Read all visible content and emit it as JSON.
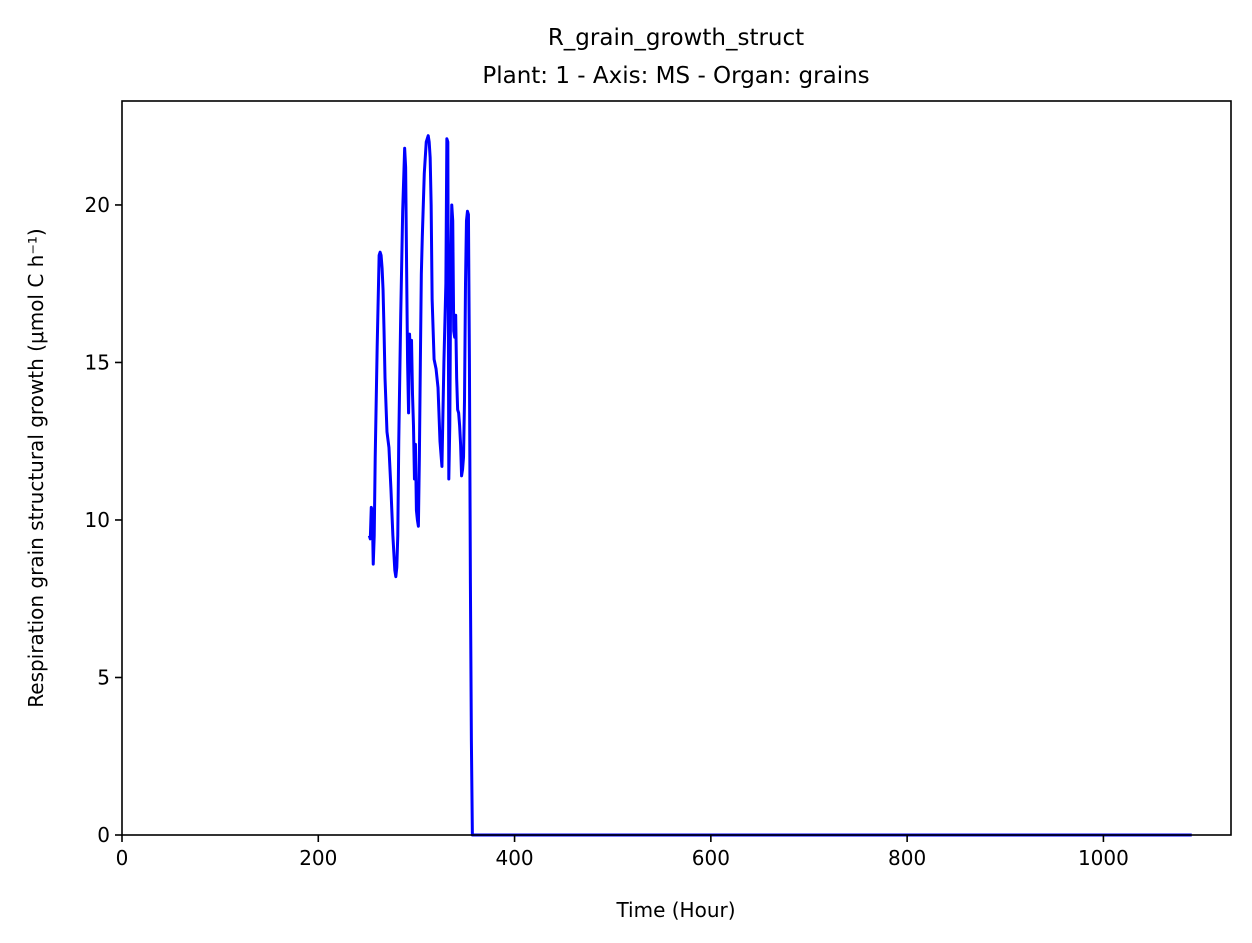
{
  "chart_data": {
    "type": "line",
    "title": "R_grain_growth_struct",
    "subtitle": "Plant: 1 - Axis: MS - Organ: grains",
    "xlabel": "Time (Hour)",
    "ylabel": "Respiration grain structural growth (μmol C h⁻¹)",
    "xlim": [
      0,
      1130
    ],
    "ylim": [
      0,
      23.3
    ],
    "xticks": [
      0,
      200,
      400,
      600,
      800,
      1000
    ],
    "yticks": [
      0,
      5,
      10,
      15,
      20
    ],
    "grid": false,
    "line_color": "#0000ff",
    "series": [
      {
        "x": [
          252,
          253,
          254,
          255,
          256,
          257,
          258,
          260,
          262,
          263,
          264,
          265,
          266,
          267,
          268,
          270,
          272,
          274,
          276,
          278,
          279,
          280,
          281,
          282,
          284,
          286,
          288,
          289,
          290,
          291,
          292,
          293,
          294,
          295,
          296,
          297,
          298,
          299,
          300,
          301,
          302,
          303,
          304,
          305,
          306,
          308,
          310,
          312,
          313,
          314,
          315,
          316,
          318,
          320,
          322,
          324,
          326,
          328,
          330,
          331,
          332,
          333,
          334,
          335,
          336,
          337,
          338,
          339,
          340,
          341,
          342,
          343,
          344,
          345,
          346,
          347,
          348,
          349,
          350,
          351,
          352,
          353,
          354,
          355,
          356,
          357,
          358,
          359,
          359.5,
          360,
          380,
          500,
          700,
          900,
          1090
        ],
        "y": [
          9.5,
          9.4,
          10.4,
          10.3,
          8.6,
          9.5,
          12.0,
          15.5,
          18.4,
          18.5,
          18.4,
          18.0,
          17.3,
          16.0,
          14.5,
          12.8,
          12.3,
          11.0,
          9.5,
          8.4,
          8.2,
          8.5,
          9.5,
          12.5,
          16.5,
          19.8,
          21.8,
          21.2,
          18.0,
          15.0,
          13.4,
          15.9,
          15.0,
          15.7,
          14.0,
          13.0,
          11.3,
          12.4,
          10.3,
          10.0,
          9.8,
          12.0,
          15.0,
          17.8,
          19.0,
          21.0,
          22.0,
          22.2,
          22.0,
          21.5,
          20.0,
          17.0,
          15.1,
          14.8,
          14.2,
          12.5,
          11.7,
          15.0,
          17.5,
          22.1,
          22.0,
          11.3,
          13.0,
          18.0,
          20.0,
          19.5,
          16.0,
          15.8,
          16.5,
          14.5,
          13.5,
          13.4,
          13.0,
          12.4,
          11.4,
          11.6,
          12.0,
          13.8,
          17.5,
          19.5,
          19.8,
          19.7,
          15.0,
          8.0,
          3.0,
          0,
          0,
          0,
          0,
          0,
          0,
          0,
          0,
          0,
          0
        ]
      }
    ]
  }
}
